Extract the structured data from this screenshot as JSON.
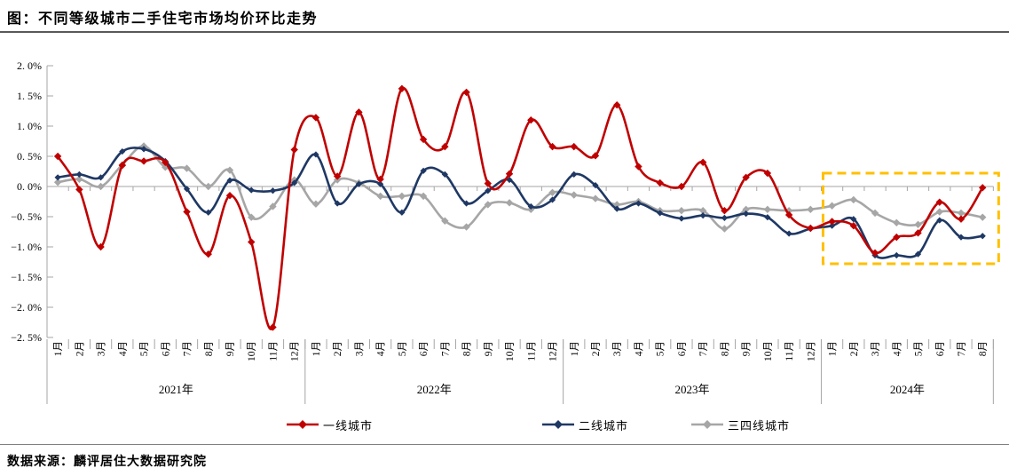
{
  "title": "图：不同等级城市二手住宅市场均价环比走势",
  "source": "数据来源：麟评居住大数据研究院",
  "colors": {
    "tier1": "#C00000",
    "tier2": "#1F3864",
    "tier34": "#A6A6A6",
    "highlight_box": "#FFC000",
    "axis": "#A6A6A6",
    "text": "#000000"
  },
  "chart_data": {
    "type": "line",
    "title": "不同等级城市二手住宅市场均价环比走势",
    "ylabel": "",
    "ylim": [
      -2.5,
      2.0
    ],
    "ytick_step": 0.5,
    "ytick_labels": [
      "2. 0%",
      "1. 5%",
      "1. 0%",
      "0. 5%",
      "0. 0%",
      "−0. 5%",
      "−1. 0%",
      "−1. 5%",
      "−2. 0%",
      "−2. 5%"
    ],
    "grid": "zero-line-only",
    "legend_position": "bottom",
    "years": [
      {
        "label": "2021年",
        "months": [
          "1月",
          "2月",
          "3月",
          "4月",
          "5月",
          "6月",
          "7月",
          "8月",
          "9月",
          "10月",
          "11月",
          "12月"
        ]
      },
      {
        "label": "2022年",
        "months": [
          "1月",
          "2月",
          "3月",
          "4月",
          "5月",
          "6月",
          "7月",
          "8月",
          "9月",
          "10月",
          "11月",
          "12月"
        ]
      },
      {
        "label": "2023年",
        "months": [
          "1月",
          "2月",
          "3月",
          "4月",
          "5月",
          "6月",
          "7月",
          "8月",
          "9月",
          "10月",
          "11月",
          "12月"
        ]
      },
      {
        "label": "2024年",
        "months": [
          "1月",
          "2月",
          "3月",
          "4月",
          "5月",
          "6月",
          "7月",
          "8月"
        ]
      }
    ],
    "unit": "%",
    "series": [
      {
        "name": "一线城市",
        "color": "#C00000",
        "values": [
          0.5,
          -0.05,
          -1.0,
          0.35,
          0.42,
          0.4,
          -0.42,
          -1.12,
          -0.15,
          -0.92,
          -2.33,
          0.61,
          1.14,
          0.17,
          1.23,
          0.12,
          1.62,
          0.78,
          0.66,
          1.56,
          0.05,
          0.21,
          1.1,
          0.66,
          0.66,
          0.51,
          1.35,
          0.33,
          0.06,
          0.0,
          0.4,
          -0.4,
          0.15,
          0.22,
          -0.47,
          -0.69,
          -0.58,
          -0.65,
          -1.1,
          -0.84,
          -0.77,
          -0.26,
          -0.54,
          -0.02
        ]
      },
      {
        "name": "二线城市",
        "color": "#1F3864",
        "values": [
          0.15,
          0.2,
          0.15,
          0.58,
          0.62,
          0.42,
          -0.04,
          -0.43,
          0.1,
          -0.06,
          -0.07,
          0.06,
          0.53,
          -0.28,
          0.04,
          0.04,
          -0.43,
          0.26,
          0.2,
          -0.28,
          -0.07,
          0.11,
          -0.33,
          -0.22,
          0.2,
          0.02,
          -0.37,
          -0.28,
          -0.44,
          -0.53,
          -0.48,
          -0.52,
          -0.45,
          -0.51,
          -0.78,
          -0.7,
          -0.65,
          -0.54,
          -1.14,
          -1.14,
          -1.12,
          -0.56,
          -0.84,
          -0.82
        ]
      },
      {
        "name": "三四线城市",
        "color": "#A6A6A6",
        "values": [
          0.07,
          0.12,
          0.0,
          0.36,
          0.67,
          0.32,
          0.3,
          0.0,
          0.27,
          -0.51,
          -0.33,
          0.11,
          -0.29,
          0.11,
          0.06,
          -0.16,
          -0.16,
          -0.16,
          -0.57,
          -0.67,
          -0.3,
          -0.27,
          -0.38,
          -0.1,
          -0.14,
          -0.2,
          -0.3,
          -0.25,
          -0.4,
          -0.4,
          -0.4,
          -0.7,
          -0.38,
          -0.38,
          -0.4,
          -0.38,
          -0.32,
          -0.22,
          -0.44,
          -0.6,
          -0.63,
          -0.42,
          -0.44,
          -0.51
        ]
      }
    ],
    "highlight_box": {
      "label": "2024年区间",
      "start_month_index": 36,
      "end_month_index": 43,
      "y_top": 0.22,
      "y_bottom": -1.28,
      "color": "#FFC000",
      "style": "dashed"
    }
  },
  "legend": {
    "entries": [
      "一线城市",
      "二线城市",
      "三四线城市"
    ]
  }
}
